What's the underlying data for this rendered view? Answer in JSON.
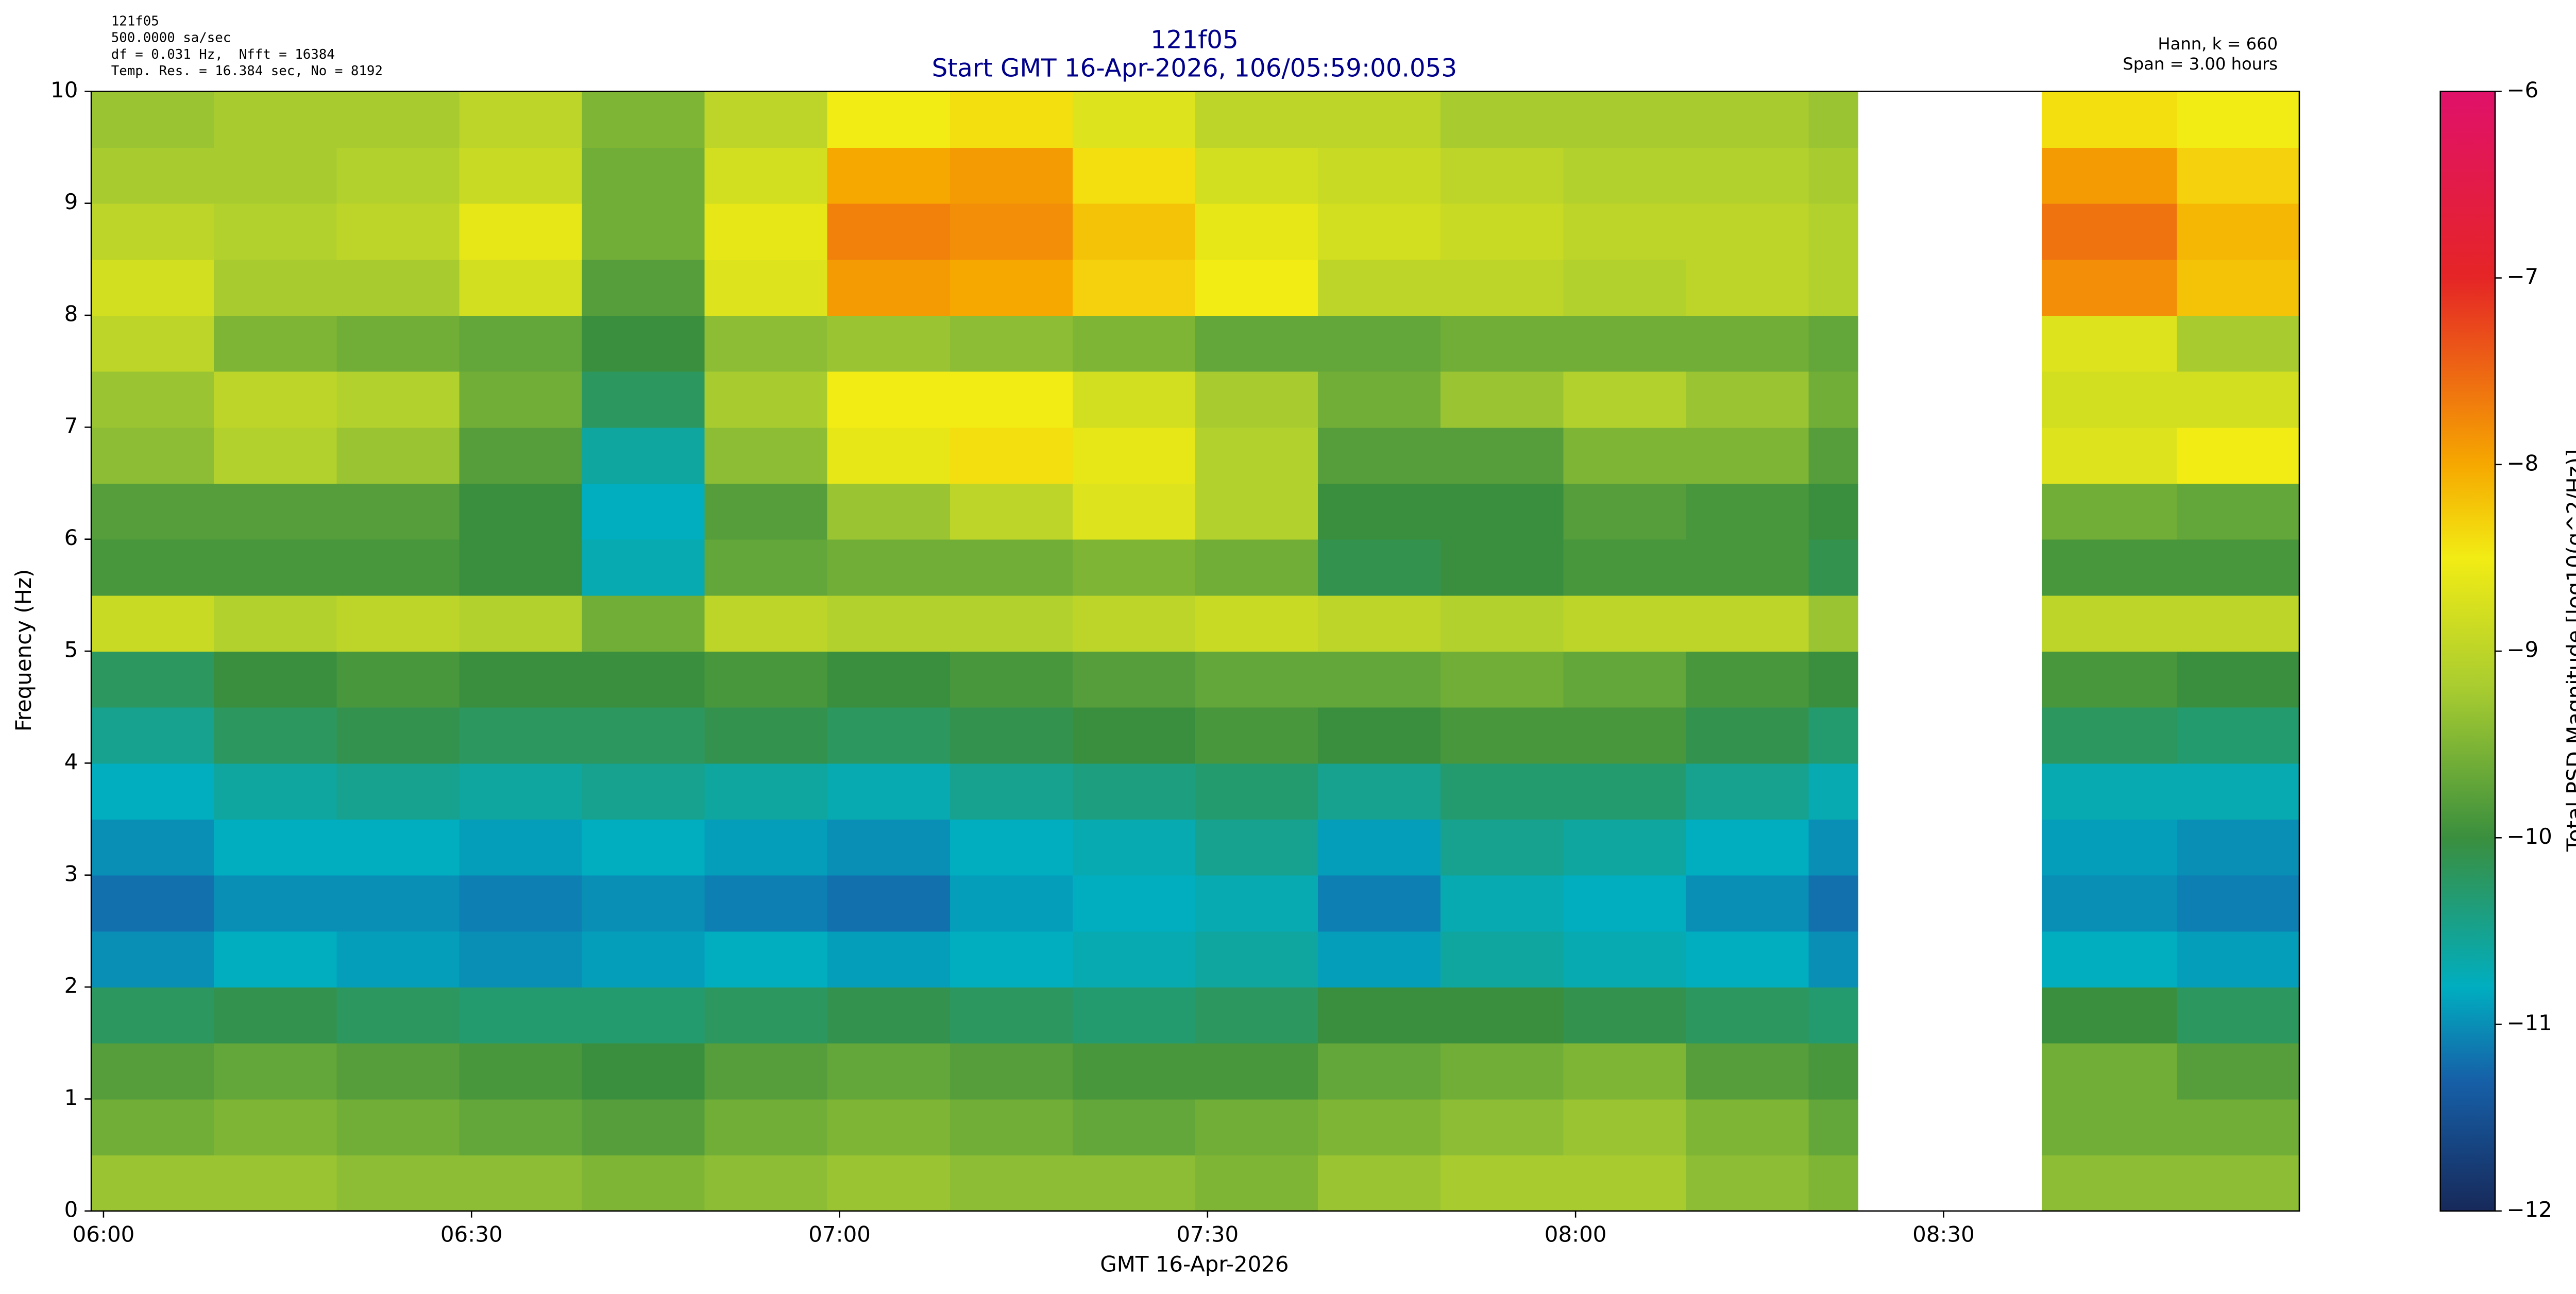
{
  "chart_data": {
    "type": "heatmap",
    "title": "121f05",
    "subtitle": "Start GMT 16-Apr-2026, 106/05:59:00.053",
    "info_left": [
      "121f05",
      "500.0000 sa/sec",
      "df = 0.031 Hz,  Nfft = 16384",
      "Temp. Res. = 16.384 sec, No = 8192"
    ],
    "info_right": [
      "Hann, k = 660",
      "Span = 3.00 hours"
    ],
    "xlabel": "GMT 16-Apr-2026",
    "ylabel": "Frequency (Hz)",
    "colorbar_label": "Total PSD Magnitude [log10(g^2/Hz)]",
    "xlim": [
      -1,
      179
    ],
    "ylim": [
      0,
      10
    ],
    "clim": [
      -12,
      -6
    ],
    "xticks": [
      {
        "value": 0,
        "label": "06:00"
      },
      {
        "value": 30,
        "label": "06:30"
      },
      {
        "value": 60,
        "label": "07:00"
      },
      {
        "value": 90,
        "label": "07:30"
      },
      {
        "value": 120,
        "label": "08:00"
      },
      {
        "value": 150,
        "label": "08:30"
      }
    ],
    "yticks": [
      0,
      1,
      2,
      3,
      4,
      5,
      6,
      7,
      8,
      9,
      10
    ],
    "cticks": [
      {
        "value": -12,
        "label": "−12"
      },
      {
        "value": -11,
        "label": "−11"
      },
      {
        "value": -10,
        "label": "−10"
      },
      {
        "value": -9,
        "label": "−9"
      },
      {
        "value": -8,
        "label": "−8"
      },
      {
        "value": -7,
        "label": "−7"
      },
      {
        "value": -6,
        "label": "−6"
      }
    ],
    "colormap": [
      {
        "value": -12,
        "color": "#17295a"
      },
      {
        "value": -11.3,
        "color": "#1660a8"
      },
      {
        "value": -10.8,
        "color": "#00aec0"
      },
      {
        "value": -10,
        "color": "#3a8f3e"
      },
      {
        "value": -9.2,
        "color": "#a8cc30"
      },
      {
        "value": -8.5,
        "color": "#f2ec14"
      },
      {
        "value": -8,
        "color": "#f6a800"
      },
      {
        "value": -7,
        "color": "#e52526"
      },
      {
        "value": -6,
        "color": "#e0116a"
      }
    ],
    "x_edges": [
      -1,
      9,
      19,
      29,
      39,
      49,
      59,
      69,
      79,
      89,
      99,
      109,
      119,
      129,
      139,
      143,
      158,
      169,
      179
    ],
    "y_edges": [
      0,
      0.5,
      1,
      1.5,
      2,
      2.5,
      3,
      3.5,
      4,
      4.5,
      5,
      5.5,
      6,
      6.5,
      7,
      7.5,
      8,
      8.5,
      9,
      9.5,
      10
    ],
    "z": [
      [
        -9.3,
        -9.3,
        -9.4,
        -9.4,
        -9.5,
        -9.4,
        -9.3,
        -9.4,
        -9.4,
        -9.5,
        -9.3,
        -9.2,
        -9.2,
        -9.4,
        -9.5,
        null,
        -9.4,
        -9.4
      ],
      [
        -9.6,
        -9.5,
        -9.6,
        -9.7,
        -9.8,
        -9.6,
        -9.5,
        -9.6,
        -9.7,
        -9.6,
        -9.5,
        -9.4,
        -9.3,
        -9.5,
        -9.7,
        null,
        -9.6,
        -9.6
      ],
      [
        -9.8,
        -9.7,
        -9.8,
        -9.9,
        -10.0,
        -9.8,
        -9.7,
        -9.8,
        -9.9,
        -9.9,
        -9.7,
        -9.6,
        -9.5,
        -9.8,
        -9.9,
        null,
        -9.6,
        -9.8
      ],
      [
        -10.2,
        -10.1,
        -10.2,
        -10.3,
        -10.3,
        -10.2,
        -10.1,
        -10.2,
        -10.3,
        -10.2,
        -10.0,
        -10.0,
        -10.1,
        -10.2,
        -10.3,
        null,
        -10.0,
        -10.2
      ],
      [
        -11.0,
        -10.8,
        -10.9,
        -11.0,
        -10.9,
        -10.8,
        -10.9,
        -10.8,
        -10.7,
        -10.6,
        -10.9,
        -10.6,
        -10.7,
        -10.8,
        -11.0,
        null,
        -10.8,
        -10.9
      ],
      [
        -11.2,
        -11.0,
        -11.0,
        -11.1,
        -11.0,
        -11.1,
        -11.2,
        -10.9,
        -10.8,
        -10.7,
        -11.1,
        -10.7,
        -10.8,
        -11.0,
        -11.2,
        null,
        -11.0,
        -11.1
      ],
      [
        -11.0,
        -10.8,
        -10.8,
        -10.9,
        -10.8,
        -10.9,
        -11.0,
        -10.8,
        -10.7,
        -10.5,
        -10.9,
        -10.5,
        -10.6,
        -10.8,
        -11.0,
        null,
        -10.9,
        -11.0
      ],
      [
        -10.8,
        -10.6,
        -10.5,
        -10.6,
        -10.5,
        -10.6,
        -10.7,
        -10.5,
        -10.4,
        -10.3,
        -10.5,
        -10.3,
        -10.3,
        -10.5,
        -10.7,
        null,
        -10.7,
        -10.7
      ],
      [
        -10.5,
        -10.2,
        -10.1,
        -10.2,
        -10.2,
        -10.1,
        -10.2,
        -10.1,
        -10.0,
        -9.9,
        -10.0,
        -9.9,
        -9.9,
        -10.1,
        -10.3,
        null,
        -10.2,
        -10.3
      ],
      [
        -10.2,
        -10.0,
        -9.9,
        -10.0,
        -10.0,
        -9.9,
        -10.0,
        -9.9,
        -9.8,
        -9.7,
        -9.7,
        -9.6,
        -9.7,
        -9.9,
        -10.0,
        null,
        -9.9,
        -10.0
      ],
      [
        -8.9,
        -9.1,
        -9.0,
        -9.1,
        -9.6,
        -9.0,
        -9.1,
        -9.1,
        -9.0,
        -8.9,
        -9.0,
        -9.1,
        -9.0,
        -9.0,
        -9.3,
        null,
        -9.0,
        -9.0
      ],
      [
        -9.9,
        -9.9,
        -9.9,
        -10.0,
        -10.7,
        -9.7,
        -9.6,
        -9.6,
        -9.5,
        -9.6,
        -10.1,
        -10.0,
        -9.9,
        -9.9,
        -10.1,
        null,
        -9.9,
        -9.9
      ],
      [
        -9.8,
        -9.8,
        -9.8,
        -10.0,
        -10.8,
        -9.8,
        -9.3,
        -9.0,
        -8.7,
        -9.1,
        -10.0,
        -10.0,
        -9.8,
        -9.9,
        -10.0,
        null,
        -9.6,
        -9.7
      ],
      [
        -9.4,
        -9.1,
        -9.3,
        -9.8,
        -10.6,
        -9.4,
        -8.6,
        -8.4,
        -8.6,
        -9.1,
        -9.8,
        -9.8,
        -9.5,
        -9.5,
        -9.8,
        null,
        -8.7,
        -8.5
      ],
      [
        -9.3,
        -9.0,
        -9.1,
        -9.6,
        -10.2,
        -9.2,
        -8.5,
        -8.5,
        -8.8,
        -9.2,
        -9.6,
        -9.3,
        -9.1,
        -9.3,
        -9.6,
        null,
        -8.8,
        -8.8
      ],
      [
        -9.0,
        -9.5,
        -9.6,
        -9.7,
        -10.0,
        -9.4,
        -9.3,
        -9.4,
        -9.5,
        -9.7,
        -9.7,
        -9.6,
        -9.6,
        -9.6,
        -9.7,
        null,
        -8.7,
        -9.2
      ],
      [
        -8.8,
        -9.2,
        -9.2,
        -8.8,
        -9.8,
        -8.7,
        -7.9,
        -8.0,
        -8.3,
        -8.5,
        -9.0,
        -9.0,
        -9.1,
        -9.0,
        -9.1,
        null,
        -7.8,
        -8.2
      ],
      [
        -9.0,
        -9.1,
        -9.0,
        -8.6,
        -9.6,
        -8.6,
        -7.7,
        -7.8,
        -8.2,
        -8.6,
        -8.8,
        -8.9,
        -9.0,
        -9.0,
        -9.1,
        null,
        -7.6,
        -8.1
      ],
      [
        -9.2,
        -9.2,
        -9.1,
        -8.9,
        -9.6,
        -8.8,
        -8.0,
        -7.9,
        -8.4,
        -8.8,
        -8.9,
        -9.0,
        -9.1,
        -9.1,
        -9.2,
        null,
        -7.9,
        -8.3
      ],
      [
        -9.3,
        -9.2,
        -9.2,
        -9.0,
        -9.5,
        -9.0,
        -8.5,
        -8.4,
        -8.7,
        -9.0,
        -9.0,
        -9.2,
        -9.2,
        -9.2,
        -9.3,
        null,
        -8.4,
        -8.5
      ]
    ]
  }
}
